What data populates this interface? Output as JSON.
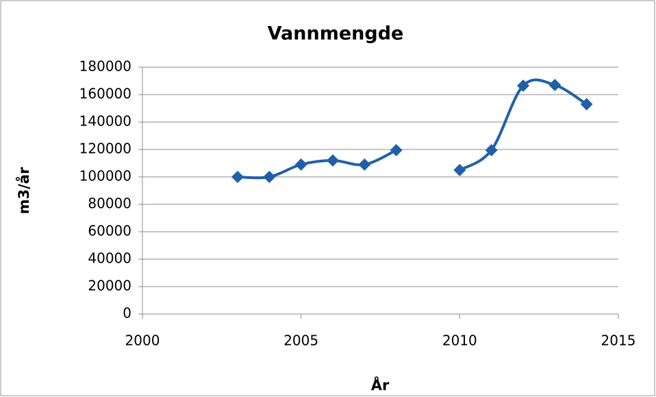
{
  "chart_data": {
    "type": "line",
    "title": "Vannmengde",
    "x_label": "År",
    "y_label": "m3/år",
    "x": [
      2003,
      2004,
      2005,
      2006,
      2007,
      2008,
      2009,
      2010,
      2011,
      2012,
      2013,
      2014
    ],
    "series": [
      {
        "name": "Vannmengde",
        "color": "#2160a8",
        "values": [
          100000,
          100000,
          109000,
          112000,
          109000,
          119500,
          null,
          105000,
          119500,
          166500,
          167000,
          153000
        ]
      }
    ],
    "xlim": [
      2000,
      2015
    ],
    "xticks": [
      2000,
      2005,
      2010,
      2015
    ],
    "ylim": [
      0,
      180000
    ],
    "yticks": [
      0,
      20000,
      40000,
      60000,
      80000,
      100000,
      120000,
      140000,
      160000,
      180000
    ],
    "grid": true,
    "smooth": true,
    "marker": "diamond"
  }
}
